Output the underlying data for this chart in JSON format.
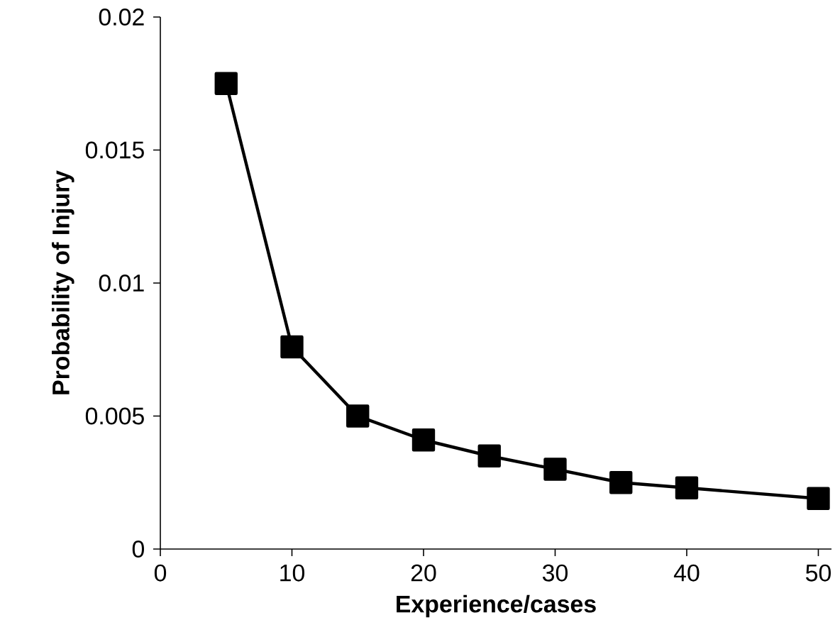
{
  "chart_data": {
    "type": "line",
    "xlabel": "Experience/cases",
    "ylabel": "Probability of Injury",
    "x": [
      5,
      10,
      15,
      20,
      25,
      30,
      35,
      40,
      50
    ],
    "series": [
      {
        "color": "#000000",
        "values": [
          0.0175,
          0.0076,
          0.005,
          0.0041,
          0.0035,
          0.003,
          0.0025,
          0.0023,
          0.0019
        ]
      }
    ],
    "xlim": [
      0,
      51
    ],
    "ylim": [
      0,
      0.02
    ],
    "xticks": [
      0,
      10,
      20,
      30,
      40,
      50
    ],
    "yticks": [
      0,
      0.005,
      0.01,
      0.015,
      0.02
    ],
    "marker": "square",
    "line_style": "solid",
    "grid": false
  }
}
